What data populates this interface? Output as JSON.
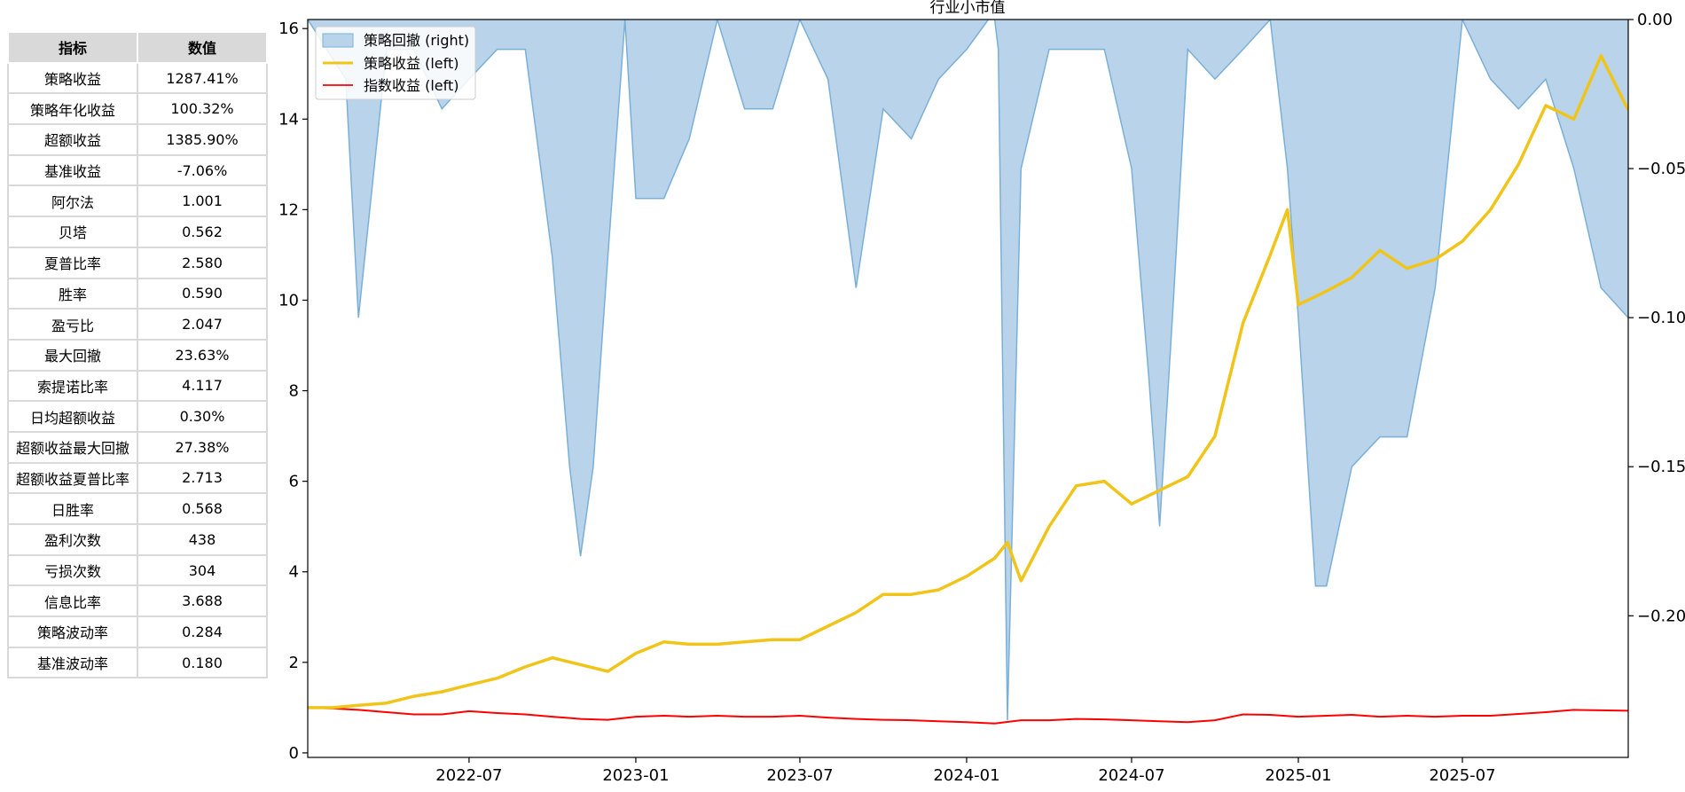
{
  "table": {
    "headers": [
      "指标",
      "数值"
    ],
    "rows": [
      [
        "策略收益",
        "1287.41%"
      ],
      [
        "策略年化收益",
        "100.32%"
      ],
      [
        "超额收益",
        "1385.90%"
      ],
      [
        "基准收益",
        "-7.06%"
      ],
      [
        "阿尔法",
        "1.001"
      ],
      [
        "贝塔",
        "0.562"
      ],
      [
        "夏普比率",
        "2.580"
      ],
      [
        "胜率",
        "0.590"
      ],
      [
        "盈亏比",
        "2.047"
      ],
      [
        "最大回撤",
        "23.63%"
      ],
      [
        "索提诺比率",
        "4.117"
      ],
      [
        "日均超额收益",
        "0.30%"
      ],
      [
        "超额收益最大回撤",
        "27.38%"
      ],
      [
        "超额收益夏普比率",
        "2.713"
      ],
      [
        "日胜率",
        "0.568"
      ],
      [
        "盈利次数",
        "438"
      ],
      [
        "亏损次数",
        "304"
      ],
      [
        "信息比率",
        "3.688"
      ],
      [
        "策略波动率",
        "0.284"
      ],
      [
        "基准波动率",
        "0.180"
      ]
    ]
  },
  "chart_data": {
    "type": "line",
    "title": "行业小市值",
    "x_ticks": [
      "2022-07",
      "2023-01",
      "2023-07",
      "2024-01",
      "2024-07",
      "2025-01",
      "2025-07"
    ],
    "x_range": [
      "2022-01-04",
      "2025-12-31"
    ],
    "y_left": {
      "ticks": [
        0,
        2,
        4,
        6,
        8,
        10,
        12,
        14,
        16
      ],
      "range": [
        -0.1,
        16.2
      ]
    },
    "y_right": {
      "ticks": [
        0.0,
        -0.05,
        -0.1,
        -0.15,
        -0.2
      ],
      "tick_labels": [
        "0.00",
        "−0.05",
        "−0.10",
        "−0.15",
        "−0.20"
      ],
      "range": [
        -0.2475,
        0.0
      ]
    },
    "legend": {
      "position": "top-left",
      "entries": [
        "策略回撤 (right)",
        "策略收益 (left)",
        "指数收益 (left)"
      ]
    },
    "colors": {
      "drawdown_fill": "#b9d4ea",
      "drawdown_line": "#7aafd8",
      "strategy": "#f0c419",
      "index": "#ff0000"
    },
    "series": [
      {
        "name": "策略收益 (left)",
        "axis": "left",
        "x": [
          "2022-01-04",
          "2022-02-01",
          "2022-03-01",
          "2022-04-01",
          "2022-05-01",
          "2022-06-01",
          "2022-07-01",
          "2022-08-01",
          "2022-09-01",
          "2022-10-01",
          "2022-11-01",
          "2022-12-01",
          "2023-01-01",
          "2023-02-01",
          "2023-03-01",
          "2023-04-01",
          "2023-05-01",
          "2023-06-01",
          "2023-07-01",
          "2023-08-01",
          "2023-09-01",
          "2023-10-01",
          "2023-11-01",
          "2023-12-01",
          "2024-01-01",
          "2024-02-01",
          "2024-02-15",
          "2024-03-01",
          "2024-04-01",
          "2024-05-01",
          "2024-06-01",
          "2024-07-01",
          "2024-08-01",
          "2024-09-01",
          "2024-10-01",
          "2024-11-01",
          "2024-12-01",
          "2024-12-20",
          "2025-01-01",
          "2025-02-01",
          "2025-03-01",
          "2025-04-01",
          "2025-05-01",
          "2025-06-01",
          "2025-07-01",
          "2025-08-01",
          "2025-09-01",
          "2025-10-01",
          "2025-11-01",
          "2025-12-01",
          "2025-12-31"
        ],
        "values": [
          1.0,
          1.0,
          1.05,
          1.1,
          1.25,
          1.35,
          1.5,
          1.65,
          1.9,
          2.1,
          1.95,
          1.8,
          2.2,
          2.45,
          2.4,
          2.4,
          2.45,
          2.5,
          2.5,
          2.8,
          3.1,
          3.5,
          3.5,
          3.6,
          3.9,
          4.3,
          4.65,
          3.8,
          5.0,
          5.9,
          6.0,
          5.5,
          5.8,
          6.1,
          7.0,
          9.5,
          11.0,
          12.0,
          9.9,
          10.2,
          10.5,
          11.1,
          10.7,
          10.9,
          11.3,
          12.0,
          13.0,
          14.3,
          14.0,
          15.4,
          14.2
        ]
      },
      {
        "name": "指数收益 (left)",
        "axis": "left",
        "x": [
          "2022-01-04",
          "2022-02-01",
          "2022-03-01",
          "2022-04-01",
          "2022-05-01",
          "2022-06-01",
          "2022-07-01",
          "2022-08-01",
          "2022-09-01",
          "2022-10-01",
          "2022-11-01",
          "2022-12-01",
          "2023-01-01",
          "2023-02-01",
          "2023-03-01",
          "2023-04-01",
          "2023-05-01",
          "2023-06-01",
          "2023-07-01",
          "2023-08-01",
          "2023-09-01",
          "2023-10-01",
          "2023-11-01",
          "2023-12-01",
          "2024-01-01",
          "2024-02-01",
          "2024-03-01",
          "2024-04-01",
          "2024-05-01",
          "2024-06-01",
          "2024-07-01",
          "2024-08-01",
          "2024-09-01",
          "2024-10-01",
          "2024-11-01",
          "2024-12-01",
          "2025-01-01",
          "2025-02-01",
          "2025-03-01",
          "2025-04-01",
          "2025-05-01",
          "2025-06-01",
          "2025-07-01",
          "2025-08-01",
          "2025-09-01",
          "2025-10-01",
          "2025-11-01",
          "2025-12-01",
          "2025-12-31"
        ],
        "values": [
          1.0,
          0.98,
          0.95,
          0.9,
          0.85,
          0.85,
          0.92,
          0.88,
          0.85,
          0.8,
          0.75,
          0.73,
          0.8,
          0.82,
          0.8,
          0.82,
          0.8,
          0.8,
          0.82,
          0.78,
          0.75,
          0.73,
          0.72,
          0.7,
          0.68,
          0.65,
          0.72,
          0.72,
          0.75,
          0.74,
          0.72,
          0.7,
          0.68,
          0.72,
          0.85,
          0.84,
          0.8,
          0.82,
          0.84,
          0.8,
          0.82,
          0.8,
          0.82,
          0.82,
          0.86,
          0.9,
          0.95,
          0.94,
          0.93
        ]
      },
      {
        "name": "策略回撤 (right)",
        "axis": "right",
        "x": [
          "2022-01-04",
          "2022-02-15",
          "2022-03-01",
          "2022-04-01",
          "2022-05-01",
          "2022-06-01",
          "2022-07-01",
          "2022-08-01",
          "2022-09-01",
          "2022-10-01",
          "2022-10-20",
          "2022-11-01",
          "2022-11-15",
          "2022-12-01",
          "2022-12-20",
          "2023-01-01",
          "2023-02-01",
          "2023-03-01",
          "2023-04-01",
          "2023-05-01",
          "2023-06-01",
          "2023-07-01",
          "2023-08-01",
          "2023-09-01",
          "2023-10-01",
          "2023-11-01",
          "2023-12-01",
          "2024-01-01",
          "2024-01-25",
          "2024-02-01",
          "2024-02-05",
          "2024-02-15",
          "2024-03-01",
          "2024-04-01",
          "2024-05-01",
          "2024-06-01",
          "2024-07-01",
          "2024-07-20",
          "2024-08-01",
          "2024-08-15",
          "2024-09-01",
          "2024-10-01",
          "2024-11-01",
          "2024-12-01",
          "2024-12-20",
          "2025-01-01",
          "2025-01-20",
          "2025-02-01",
          "2025-03-01",
          "2025-04-01",
          "2025-05-01",
          "2025-06-01",
          "2025-07-01",
          "2025-08-01",
          "2025-09-01",
          "2025-10-01",
          "2025-11-01",
          "2025-12-01",
          "2025-12-31"
        ],
        "values": [
          0.0,
          -0.02,
          -0.1,
          -0.01,
          -0.01,
          -0.03,
          -0.02,
          -0.01,
          -0.01,
          -0.08,
          -0.15,
          -0.18,
          -0.15,
          -0.08,
          0.0,
          -0.06,
          -0.06,
          -0.04,
          0.0,
          -0.03,
          -0.03,
          0.0,
          -0.02,
          -0.09,
          -0.03,
          -0.04,
          -0.02,
          -0.01,
          0.0,
          0.0,
          -0.01,
          -0.235,
          -0.05,
          -0.01,
          -0.01,
          -0.01,
          -0.05,
          -0.12,
          -0.17,
          -0.1,
          -0.01,
          -0.02,
          -0.01,
          0.0,
          -0.05,
          -0.1,
          -0.19,
          -0.19,
          -0.15,
          -0.14,
          -0.14,
          -0.09,
          0.0,
          -0.02,
          -0.03,
          -0.02,
          -0.05,
          -0.09,
          -0.1
        ]
      }
    ]
  }
}
